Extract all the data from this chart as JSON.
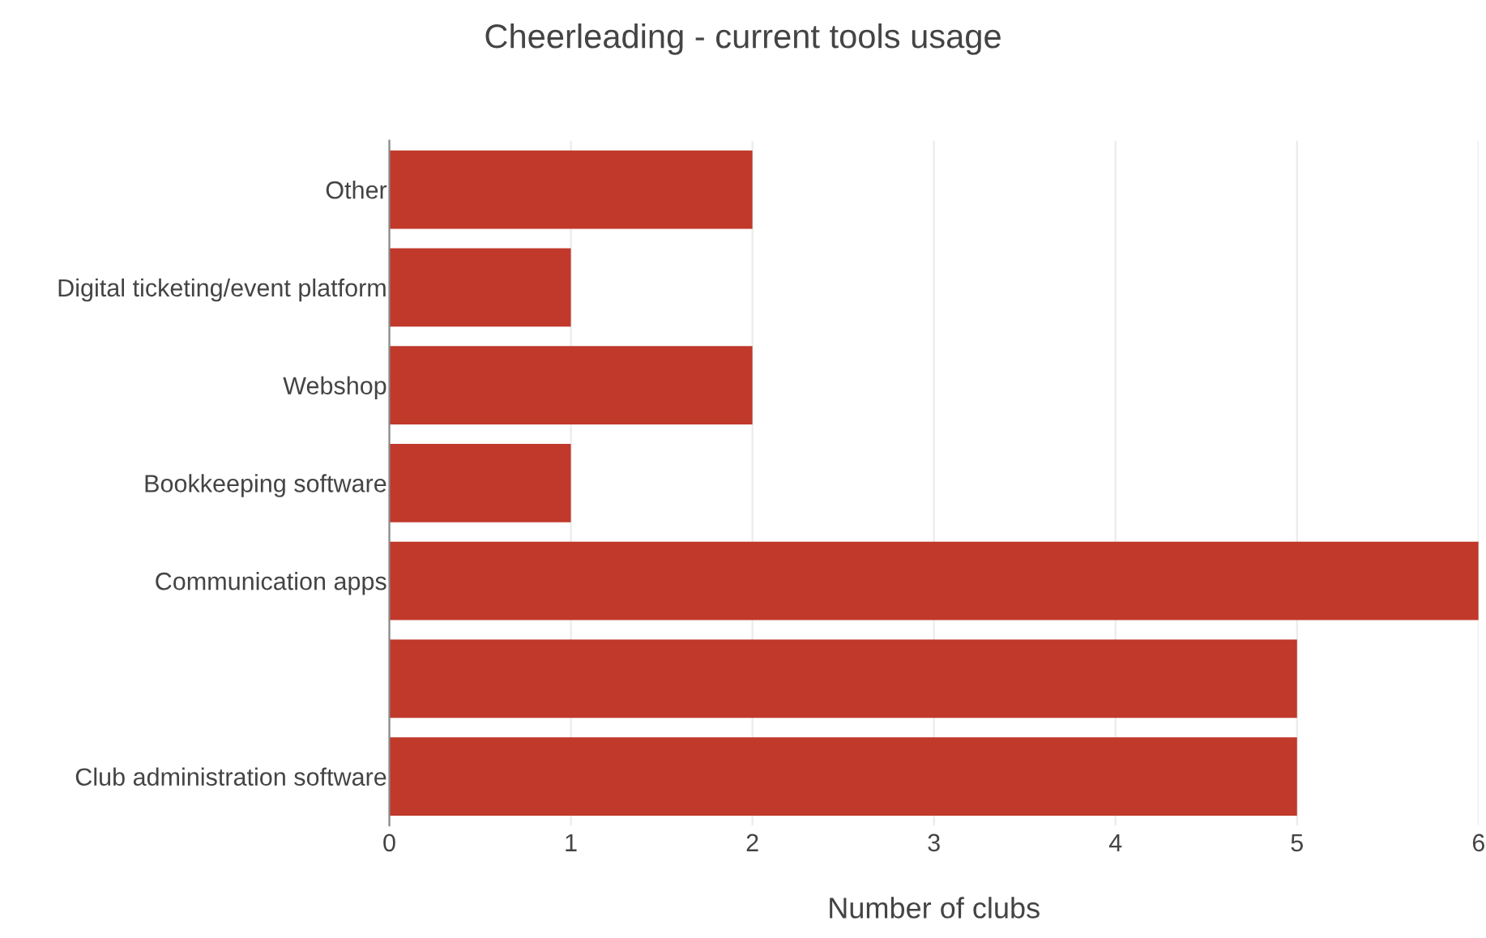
{
  "chart_data": {
    "type": "bar",
    "orientation": "horizontal",
    "title": "Cheerleading - current tools usage",
    "xlabel": "Number of clubs",
    "categories": [
      "Other",
      "Digital ticketing/event platform",
      "Webshop",
      "Bookkeeping software",
      "Communication apps",
      null,
      "Club administration software"
    ],
    "values": [
      2,
      1,
      2,
      1,
      6,
      5,
      5
    ],
    "color": "#c0392b",
    "xlim": [
      0,
      6
    ],
    "xticks": [
      0,
      1,
      2,
      3,
      4,
      5,
      6
    ],
    "grid": "x"
  }
}
